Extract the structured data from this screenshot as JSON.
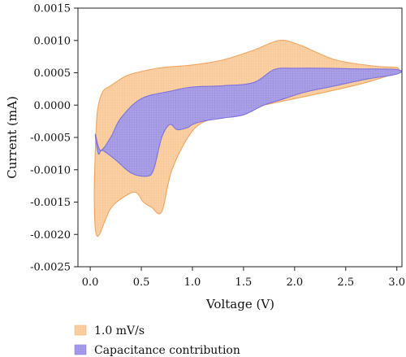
{
  "chart_data": {
    "type": "area",
    "xlabel": "Voltage (V)",
    "ylabel": "Current (mA)",
    "xlim": [
      -0.12,
      3.05
    ],
    "ylim": [
      -0.0025,
      0.0015
    ],
    "x_ticks": [
      0.0,
      0.5,
      1.0,
      1.5,
      2.0,
      2.5,
      3.0
    ],
    "x_tick_labels": [
      "0.0",
      "0.5",
      "1.0",
      "1.5",
      "2.0",
      "2.5",
      "3.0"
    ],
    "y_ticks": [
      -0.0025,
      -0.002,
      -0.0015,
      -0.001,
      -0.0005,
      0.0,
      0.0005,
      0.001,
      0.0015
    ],
    "y_tick_labels": [
      "-0.0025",
      "-0.0020",
      "-0.0015",
      "-0.0010",
      "-0.0005",
      "0.0000",
      "0.0005",
      "0.0010",
      "0.0015"
    ],
    "legend_position": "bottom-left, below plot",
    "series": [
      {
        "name": "1.0 mV/s",
        "color": "#F5A25A",
        "fill": "#FAD0A5",
        "x": [
          0.05,
          0.07,
          0.12,
          0.2,
          0.35,
          0.5,
          0.7,
          1.0,
          1.3,
          1.6,
          1.85,
          2.05,
          2.4,
          2.8,
          3.0,
          2.98,
          2.7,
          2.3,
          2.0,
          1.7,
          1.4,
          1.2,
          1.0,
          0.8,
          0.7,
          0.6,
          0.52,
          0.45,
          0.35,
          0.2,
          0.07,
          0.04
        ],
        "y": [
          -0.0007,
          -0.0001,
          0.0002,
          0.0003,
          0.00045,
          0.00052,
          0.00058,
          0.00062,
          0.0007,
          0.00085,
          0.001,
          0.00093,
          0.0007,
          0.0006,
          0.00058,
          0.0005,
          0.00035,
          0.0002,
          0.0001,
          0.0,
          -0.0001,
          -0.0002,
          -0.0004,
          -0.001,
          -0.00165,
          -0.00158,
          -0.0015,
          -0.00135,
          -0.0014,
          -0.0016,
          -0.00203,
          -0.0015
        ]
      },
      {
        "name": "Capacitance contribution",
        "color": "#7D72D9",
        "fill": "#A49BEB",
        "x": [
          0.05,
          0.1,
          0.2,
          0.3,
          0.5,
          0.8,
          1.0,
          1.3,
          1.6,
          1.8,
          2.0,
          2.3,
          2.6,
          3.0,
          3.0,
          2.7,
          2.4,
          2.1,
          1.9,
          1.7,
          1.5,
          1.3,
          1.1,
          1.0,
          0.95,
          0.85,
          0.78,
          0.7,
          0.62,
          0.55,
          0.4,
          0.25,
          0.12,
          0.08
        ],
        "y": [
          -0.00045,
          -0.0007,
          -0.0005,
          -0.0002,
          0.0001,
          0.00022,
          0.00028,
          0.0003,
          0.00035,
          0.00055,
          0.00057,
          0.00057,
          0.00056,
          0.00055,
          0.00048,
          0.0004,
          0.0003,
          0.0002,
          0.0001,
          0.0,
          -0.00015,
          -0.0002,
          -0.00025,
          -0.0003,
          -0.00035,
          -0.00038,
          -0.0003,
          -0.0005,
          -0.001,
          -0.0011,
          -0.00105,
          -0.00085,
          -0.0007,
          -0.00075
        ]
      }
    ]
  }
}
